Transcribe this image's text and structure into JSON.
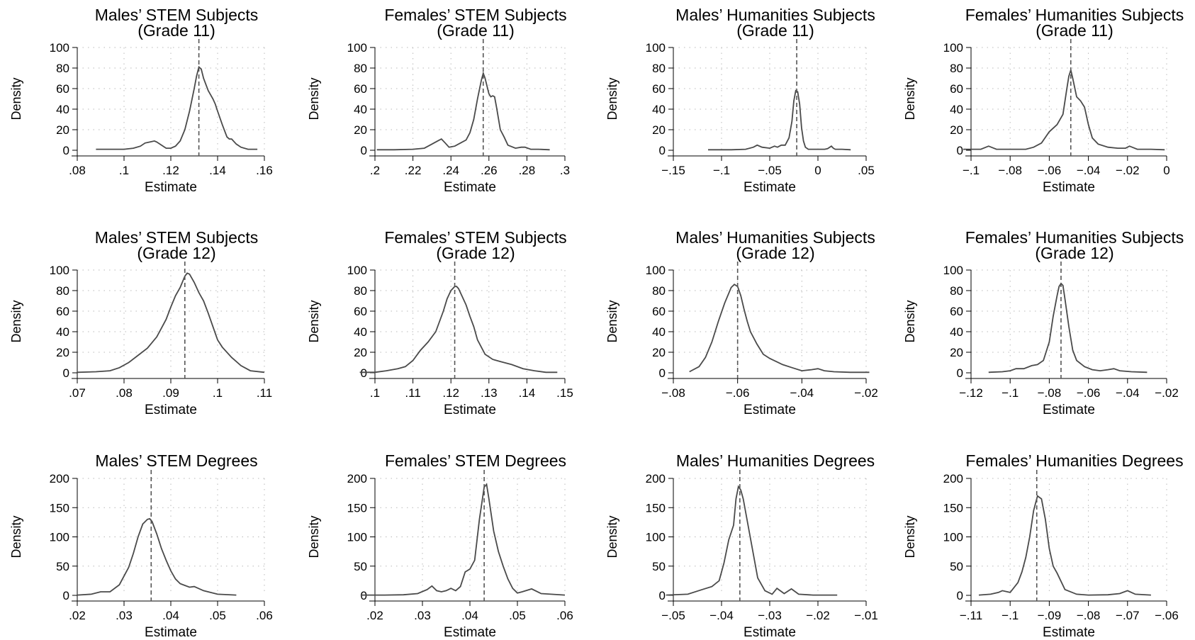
{
  "chart_data": [
    {
      "type": "line",
      "title": [
        "Males’ STEM Subjects",
        "(Grade 11)"
      ],
      "xlabel": "Estimate",
      "ylabel": "Density",
      "xlim": [
        0.08,
        0.16
      ],
      "ylim": [
        0,
        100
      ],
      "xticks": [
        0.08,
        0.1,
        0.12,
        0.14,
        0.16
      ],
      "xtick_labels": [
        ".08",
        ".1",
        ".12",
        ".14",
        ".16"
      ],
      "yticks": [
        0,
        20,
        40,
        60,
        80,
        100
      ],
      "ytick_labels": [
        "0",
        "20",
        "40",
        "60",
        "80",
        "100"
      ],
      "vline": 0.132,
      "x": [
        0.088,
        0.095,
        0.1,
        0.104,
        0.107,
        0.109,
        0.111,
        0.113,
        0.114,
        0.116,
        0.118,
        0.12,
        0.122,
        0.124,
        0.126,
        0.128,
        0.13,
        0.131,
        0.132,
        0.133,
        0.134,
        0.136,
        0.138,
        0.139,
        0.14,
        0.142,
        0.144,
        0.145,
        0.146,
        0.148,
        0.15,
        0.153,
        0.157
      ],
      "y": [
        1,
        1,
        1,
        2,
        4,
        7,
        8,
        9,
        8,
        5,
        2,
        2,
        4,
        9,
        20,
        38,
        60,
        72,
        81,
        79,
        70,
        58,
        50,
        45,
        38,
        25,
        13,
        11,
        11,
        6,
        3,
        1,
        1
      ]
    },
    {
      "type": "line",
      "title": [
        "Females’ STEM Subjects",
        "(Grade 11)"
      ],
      "xlabel": "Estimate",
      "ylabel": "Density",
      "xlim": [
        0.2,
        0.3
      ],
      "ylim": [
        0,
        100
      ],
      "xticks": [
        0.2,
        0.22,
        0.24,
        0.26,
        0.28,
        0.3
      ],
      "xtick_labels": [
        ".2",
        ".22",
        ".24",
        ".26",
        ".28",
        ".3"
      ],
      "yticks": [
        0,
        20,
        40,
        60,
        80,
        100
      ],
      "ytick_labels": [
        "0",
        "20",
        "40",
        "60",
        "80",
        "100"
      ],
      "vline": 0.257,
      "x": [
        0.201,
        0.21,
        0.22,
        0.226,
        0.23,
        0.233,
        0.235,
        0.237,
        0.239,
        0.242,
        0.245,
        0.248,
        0.25,
        0.252,
        0.254,
        0.256,
        0.257,
        0.258,
        0.26,
        0.261,
        0.262,
        0.263,
        0.264,
        0.266,
        0.268,
        0.27,
        0.274,
        0.277,
        0.279,
        0.282,
        0.286,
        0.292
      ],
      "y": [
        0.5,
        0.5,
        1,
        2,
        6,
        9,
        11,
        7,
        3,
        4,
        7,
        10,
        17,
        30,
        50,
        68,
        75,
        70,
        55,
        52,
        53,
        52,
        42,
        20,
        13,
        5,
        2,
        3,
        3,
        1,
        1,
        0.5
      ]
    },
    {
      "type": "line",
      "title": [
        "Males’ Humanities Subjects",
        "(Grade 11)"
      ],
      "xlabel": "Estimate",
      "ylabel": "Density",
      "xlim": [
        -0.15,
        0.05
      ],
      "ylim": [
        0,
        100
      ],
      "xticks": [
        -0.15,
        -0.1,
        -0.05,
        0,
        0.05
      ],
      "xtick_labels": [
        "−.15",
        "−.1",
        "−.05",
        "0",
        ".05"
      ],
      "yticks": [
        0,
        20,
        40,
        60,
        80,
        100
      ],
      "ytick_labels": [
        "0",
        "20",
        "40",
        "60",
        "80",
        "100"
      ],
      "vline": -0.022,
      "x": [
        -0.114,
        -0.09,
        -0.075,
        -0.067,
        -0.063,
        -0.058,
        -0.05,
        -0.045,
        -0.042,
        -0.038,
        -0.034,
        -0.03,
        -0.027,
        -0.025,
        -0.023,
        -0.021,
        -0.019,
        -0.017,
        -0.015,
        -0.013,
        -0.01,
        -0.006,
        -0.002,
        0.002,
        0.007,
        0.01,
        0.014,
        0.016,
        0.018,
        0.025,
        0.034
      ],
      "y": [
        0.5,
        0.5,
        1,
        3,
        5,
        3,
        2,
        4,
        3,
        5,
        5,
        12,
        28,
        48,
        58,
        57,
        45,
        22,
        9,
        3,
        1,
        1,
        1,
        1,
        1,
        1.5,
        4,
        2,
        1,
        1,
        0.5
      ]
    },
    {
      "type": "line",
      "title": [
        "Females’ Humanities Subjects",
        "(Grade 11)"
      ],
      "xlabel": "Estimate",
      "ylabel": "Density",
      "xlim": [
        -0.1,
        0
      ],
      "ylim": [
        0,
        100
      ],
      "xticks": [
        -0.1,
        -0.08,
        -0.06,
        -0.04,
        -0.02,
        0
      ],
      "xtick_labels": [
        "−.1",
        "−.08",
        "−.06",
        "−.04",
        "−.02",
        "0"
      ],
      "yticks": [
        0,
        20,
        40,
        60,
        80,
        100
      ],
      "ytick_labels": [
        "0",
        "20",
        "40",
        "60",
        "80",
        "100"
      ],
      "vline": -0.049,
      "x": [
        -0.104,
        -0.095,
        -0.091,
        -0.087,
        -0.08,
        -0.072,
        -0.068,
        -0.064,
        -0.06,
        -0.056,
        -0.053,
        -0.051,
        -0.05,
        -0.049,
        -0.048,
        -0.046,
        -0.044,
        -0.042,
        -0.04,
        -0.038,
        -0.035,
        -0.03,
        -0.025,
        -0.021,
        -0.019,
        -0.015,
        -0.008,
        -0.001
      ],
      "y": [
        1,
        1,
        4,
        1,
        1,
        1,
        3,
        7,
        18,
        25,
        35,
        60,
        72,
        78,
        70,
        52,
        48,
        42,
        25,
        12,
        6,
        3,
        2,
        2,
        4,
        1,
        1,
        0.5
      ]
    },
    {
      "type": "line",
      "title": [
        "Males’ STEM Subjects",
        "(Grade 12)"
      ],
      "xlabel": "Estimate",
      "ylabel": "Density",
      "xlim": [
        0.07,
        0.11
      ],
      "ylim": [
        0,
        100
      ],
      "xticks": [
        0.07,
        0.08,
        0.09,
        0.1,
        0.11
      ],
      "xtick_labels": [
        ".07",
        ".08",
        ".09",
        ".1",
        ".11"
      ],
      "yticks": [
        0,
        20,
        40,
        60,
        80,
        100
      ],
      "ytick_labels": [
        "0",
        "20",
        "40",
        "60",
        "80",
        "100"
      ],
      "vline": 0.093,
      "x": [
        0.07,
        0.074,
        0.077,
        0.079,
        0.081,
        0.083,
        0.085,
        0.087,
        0.089,
        0.09,
        0.091,
        0.092,
        0.093,
        0.0935,
        0.094,
        0.095,
        0.096,
        0.097,
        0.098,
        0.099,
        0.1,
        0.101,
        0.103,
        0.105,
        0.107,
        0.11
      ],
      "y": [
        0.5,
        1,
        2,
        5,
        10,
        17,
        24,
        35,
        52,
        64,
        75,
        83,
        94,
        97,
        96,
        88,
        78,
        70,
        58,
        45,
        32,
        25,
        15,
        7,
        2,
        0.5
      ]
    },
    {
      "type": "line",
      "title": [
        "Females’ STEM Subjects",
        "(Grade 12)"
      ],
      "xlabel": "Estimate",
      "ylabel": "Density",
      "xlim": [
        0.1,
        0.15
      ],
      "ylim": [
        0,
        100
      ],
      "xticks": [
        0.1,
        0.11,
        0.12,
        0.13,
        0.14,
        0.15
      ],
      "xtick_labels": [
        ".1",
        ".11",
        ".12",
        ".13",
        ".14",
        ".15"
      ],
      "yticks": [
        0,
        20,
        40,
        60,
        80,
        100
      ],
      "ytick_labels": [
        "0",
        "20",
        "40",
        "60",
        "80",
        "100"
      ],
      "vline": 0.121,
      "x": [
        0.096,
        0.1,
        0.103,
        0.106,
        0.108,
        0.11,
        0.112,
        0.114,
        0.116,
        0.118,
        0.119,
        0.12,
        0.121,
        0.1215,
        0.122,
        0.123,
        0.124,
        0.125,
        0.126,
        0.127,
        0.129,
        0.131,
        0.133,
        0.136,
        0.139,
        0.142,
        0.145,
        0.148
      ],
      "y": [
        0.5,
        0.5,
        2,
        4,
        6,
        12,
        22,
        30,
        40,
        60,
        72,
        80,
        84,
        84,
        82,
        74,
        66,
        55,
        45,
        32,
        18,
        13,
        11,
        8,
        4,
        2,
        0.5,
        0.5
      ]
    },
    {
      "type": "line",
      "title": [
        "Males’ Humanities Subjects",
        "(Grade 12)"
      ],
      "xlabel": "Estimate",
      "ylabel": "Density",
      "xlim": [
        -0.08,
        -0.02
      ],
      "ylim": [
        0,
        100
      ],
      "xticks": [
        -0.08,
        -0.06,
        -0.04,
        -0.02
      ],
      "xtick_labels": [
        "−.08",
        "−.06",
        "−.04",
        "−.02"
      ],
      "yticks": [
        0,
        20,
        40,
        60,
        80,
        100
      ],
      "ytick_labels": [
        "0",
        "20",
        "40",
        "60",
        "80",
        "100"
      ],
      "vline": -0.06,
      "x": [
        -0.075,
        -0.072,
        -0.07,
        -0.068,
        -0.066,
        -0.064,
        -0.062,
        -0.061,
        -0.06,
        -0.059,
        -0.058,
        -0.057,
        -0.056,
        -0.054,
        -0.052,
        -0.05,
        -0.048,
        -0.046,
        -0.043,
        -0.04,
        -0.037,
        -0.035,
        -0.033,
        -0.03,
        -0.025,
        -0.019
      ],
      "y": [
        1,
        6,
        15,
        30,
        50,
        68,
        83,
        86,
        84,
        75,
        62,
        50,
        40,
        28,
        18,
        14,
        11,
        8,
        5,
        2,
        3,
        4,
        2,
        1,
        0.5,
        0.5
      ]
    },
    {
      "type": "line",
      "title": [
        "Females’ Humanities Subjects",
        "(Grade 12)"
      ],
      "xlabel": "Estimate",
      "ylabel": "Density",
      "xlim": [
        -0.12,
        -0.02
      ],
      "ylim": [
        0,
        100
      ],
      "xticks": [
        -0.12,
        -0.1,
        -0.08,
        -0.06,
        -0.04,
        -0.02
      ],
      "xtick_labels": [
        "−.12",
        "−.1",
        "−.08",
        "−.06",
        "−.04",
        "−.02"
      ],
      "yticks": [
        0,
        20,
        40,
        60,
        80,
        100
      ],
      "ytick_labels": [
        "0",
        "20",
        "40",
        "60",
        "80",
        "100"
      ],
      "vline": -0.074,
      "x": [
        -0.111,
        -0.104,
        -0.1,
        -0.097,
        -0.093,
        -0.089,
        -0.086,
        -0.083,
        -0.08,
        -0.078,
        -0.076,
        -0.075,
        -0.074,
        -0.073,
        -0.072,
        -0.07,
        -0.068,
        -0.066,
        -0.062,
        -0.058,
        -0.054,
        -0.05,
        -0.047,
        -0.044,
        -0.038,
        -0.03
      ],
      "y": [
        0.5,
        1,
        2,
        4,
        4,
        7,
        8,
        12,
        30,
        55,
        75,
        84,
        87,
        85,
        72,
        45,
        22,
        12,
        6,
        3,
        2,
        3,
        4,
        2,
        1,
        0.5
      ]
    },
    {
      "type": "line",
      "title": [
        "Males’ STEM Degrees"
      ],
      "xlabel": "Estimate",
      "ylabel": "Density",
      "xlim": [
        0.02,
        0.06
      ],
      "ylim": [
        0,
        200
      ],
      "xticks": [
        0.02,
        0.03,
        0.04,
        0.05,
        0.06
      ],
      "xtick_labels": [
        ".02",
        ".03",
        ".04",
        ".05",
        ".06"
      ],
      "yticks": [
        0,
        50,
        100,
        150,
        200
      ],
      "ytick_labels": [
        "0",
        "50",
        "100",
        "150",
        "200"
      ],
      "vline": 0.0358,
      "x": [
        0.02,
        0.023,
        0.025,
        0.027,
        0.029,
        0.031,
        0.032,
        0.033,
        0.034,
        0.035,
        0.0355,
        0.036,
        0.037,
        0.038,
        0.039,
        0.04,
        0.041,
        0.042,
        0.043,
        0.044,
        0.045,
        0.047,
        0.05,
        0.054
      ],
      "y": [
        0.5,
        2,
        6,
        6,
        18,
        48,
        72,
        100,
        122,
        130,
        131,
        126,
        105,
        80,
        60,
        42,
        28,
        20,
        17,
        14,
        15,
        8,
        2,
        0.5
      ]
    },
    {
      "type": "line",
      "title": [
        "Females’ STEM Degrees"
      ],
      "xlabel": "Estimate",
      "ylabel": "Density",
      "xlim": [
        0.02,
        0.06
      ],
      "ylim": [
        0,
        200
      ],
      "xticks": [
        0.02,
        0.03,
        0.04,
        0.05,
        0.06
      ],
      "xtick_labels": [
        ".02",
        ".03",
        ".04",
        ".05",
        ".06"
      ],
      "yticks": [
        0,
        50,
        100,
        150,
        200
      ],
      "ytick_labels": [
        "0",
        "50",
        "100",
        "150",
        "200"
      ],
      "vline": 0.043,
      "x": [
        0.017,
        0.022,
        0.026,
        0.029,
        0.031,
        0.032,
        0.033,
        0.034,
        0.035,
        0.036,
        0.037,
        0.038,
        0.039,
        0.04,
        0.041,
        0.042,
        0.043,
        0.0435,
        0.044,
        0.045,
        0.046,
        0.047,
        0.048,
        0.049,
        0.05,
        0.051,
        0.053,
        0.055,
        0.06
      ],
      "y": [
        0.5,
        0.5,
        1,
        3,
        10,
        16,
        8,
        6,
        8,
        12,
        8,
        15,
        40,
        45,
        60,
        130,
        185,
        190,
        165,
        110,
        75,
        50,
        28,
        12,
        4,
        6,
        11,
        3,
        0.5
      ]
    },
    {
      "type": "line",
      "title": [
        "Males’ Humanities Degrees"
      ],
      "xlabel": "Estimate",
      "ylabel": "Density",
      "xlim": [
        -0.05,
        -0.01
      ],
      "ylim": [
        0,
        200
      ],
      "xticks": [
        -0.05,
        -0.04,
        -0.03,
        -0.02,
        -0.01
      ],
      "xtick_labels": [
        "−.05",
        "−.04",
        "−.03",
        "−.02",
        "−.01"
      ],
      "yticks": [
        0,
        50,
        100,
        150,
        200
      ],
      "ytick_labels": [
        "0",
        "50",
        "100",
        "150",
        "200"
      ],
      "vline": -0.0362,
      "x": [
        -0.0515,
        -0.047,
        -0.044,
        -0.042,
        -0.0405,
        -0.0395,
        -0.0385,
        -0.0375,
        -0.037,
        -0.0365,
        -0.036,
        -0.0355,
        -0.0345,
        -0.0335,
        -0.0325,
        -0.031,
        -0.0295,
        -0.0285,
        -0.027,
        -0.0255,
        -0.024,
        -0.021,
        -0.016
      ],
      "y": [
        0.5,
        2,
        10,
        15,
        25,
        55,
        95,
        120,
        165,
        186,
        180,
        165,
        120,
        75,
        30,
        8,
        2,
        12,
        3,
        11,
        2,
        0.5,
        0.5
      ]
    },
    {
      "type": "line",
      "title": [
        "Females’ Humanities Degrees"
      ],
      "xlabel": "Estimate",
      "ylabel": "Density",
      "xlim": [
        -0.11,
        -0.06
      ],
      "ylim": [
        0,
        200
      ],
      "xticks": [
        -0.11,
        -0.1,
        -0.09,
        -0.08,
        -0.07,
        -0.06
      ],
      "xtick_labels": [
        "−.11",
        "−.1",
        "−.09",
        "−.08",
        "−.07",
        "−.06"
      ],
      "yticks": [
        0,
        50,
        100,
        150,
        200
      ],
      "ytick_labels": [
        "0",
        "50",
        "100",
        "150",
        "200"
      ],
      "vline": -0.0932,
      "x": [
        -0.108,
        -0.105,
        -0.103,
        -0.102,
        -0.1,
        -0.098,
        -0.097,
        -0.096,
        -0.095,
        -0.094,
        -0.093,
        -0.092,
        -0.091,
        -0.09,
        -0.089,
        -0.088,
        -0.086,
        -0.083,
        -0.08,
        -0.075,
        -0.072,
        -0.07,
        -0.068,
        -0.064
      ],
      "y": [
        0.5,
        2,
        5,
        8,
        5,
        22,
        40,
        65,
        100,
        145,
        170,
        165,
        130,
        80,
        50,
        38,
        10,
        2,
        0.5,
        1,
        3,
        8,
        2,
        0.5
      ]
    }
  ]
}
